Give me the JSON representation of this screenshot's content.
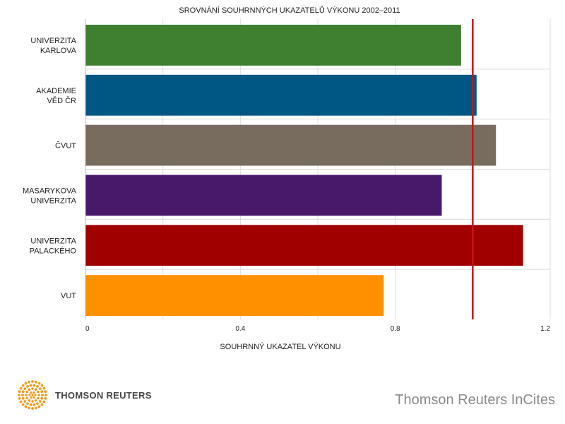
{
  "chart_data": {
    "type": "bar",
    "orientation": "horizontal",
    "title": "SROVNÁNÍ SOUHRNNÝCH UKAZATELŮ VÝKONU 2002–2011",
    "xlabel": "SOUHRNNÝ UKAZATEL VÝKONU",
    "ylabel": "",
    "xlim": [
      0,
      1.2
    ],
    "ticks": [
      "0",
      "0.4",
      "0.8",
      "1.2"
    ],
    "tick_values": [
      0,
      0.4,
      0.8,
      1.2
    ],
    "grid": true,
    "reference_line": {
      "value": 1.0,
      "color": "#c0161c"
    },
    "categories": [
      {
        "lines": [
          "UNIVERZITA",
          "KARLOVA"
        ],
        "value": 0.97,
        "color": "#3f7f30"
      },
      {
        "lines": [
          "AKADEMIE",
          "VĚD ČR"
        ],
        "value": 1.01,
        "color": "#005784"
      },
      {
        "lines": [
          "ČVUT"
        ],
        "value": 1.06,
        "color": "#786c5e"
      },
      {
        "lines": [
          "MASARYKOVA",
          "UNIVERZITA"
        ],
        "value": 0.92,
        "color": "#48186b"
      },
      {
        "lines": [
          "UNIVERZITA",
          "PALACKÉHO"
        ],
        "value": 1.13,
        "color": "#a00000"
      },
      {
        "lines": [
          "VUT"
        ],
        "value": 0.77,
        "color": "#ff9100"
      }
    ]
  },
  "footer": {
    "logo_text": "THOMSON REUTERS",
    "product": "Thomson Reuters InCites",
    "logo_icon": "thomson-reuters-dot-circle",
    "logo_color": "#f39a1e"
  }
}
